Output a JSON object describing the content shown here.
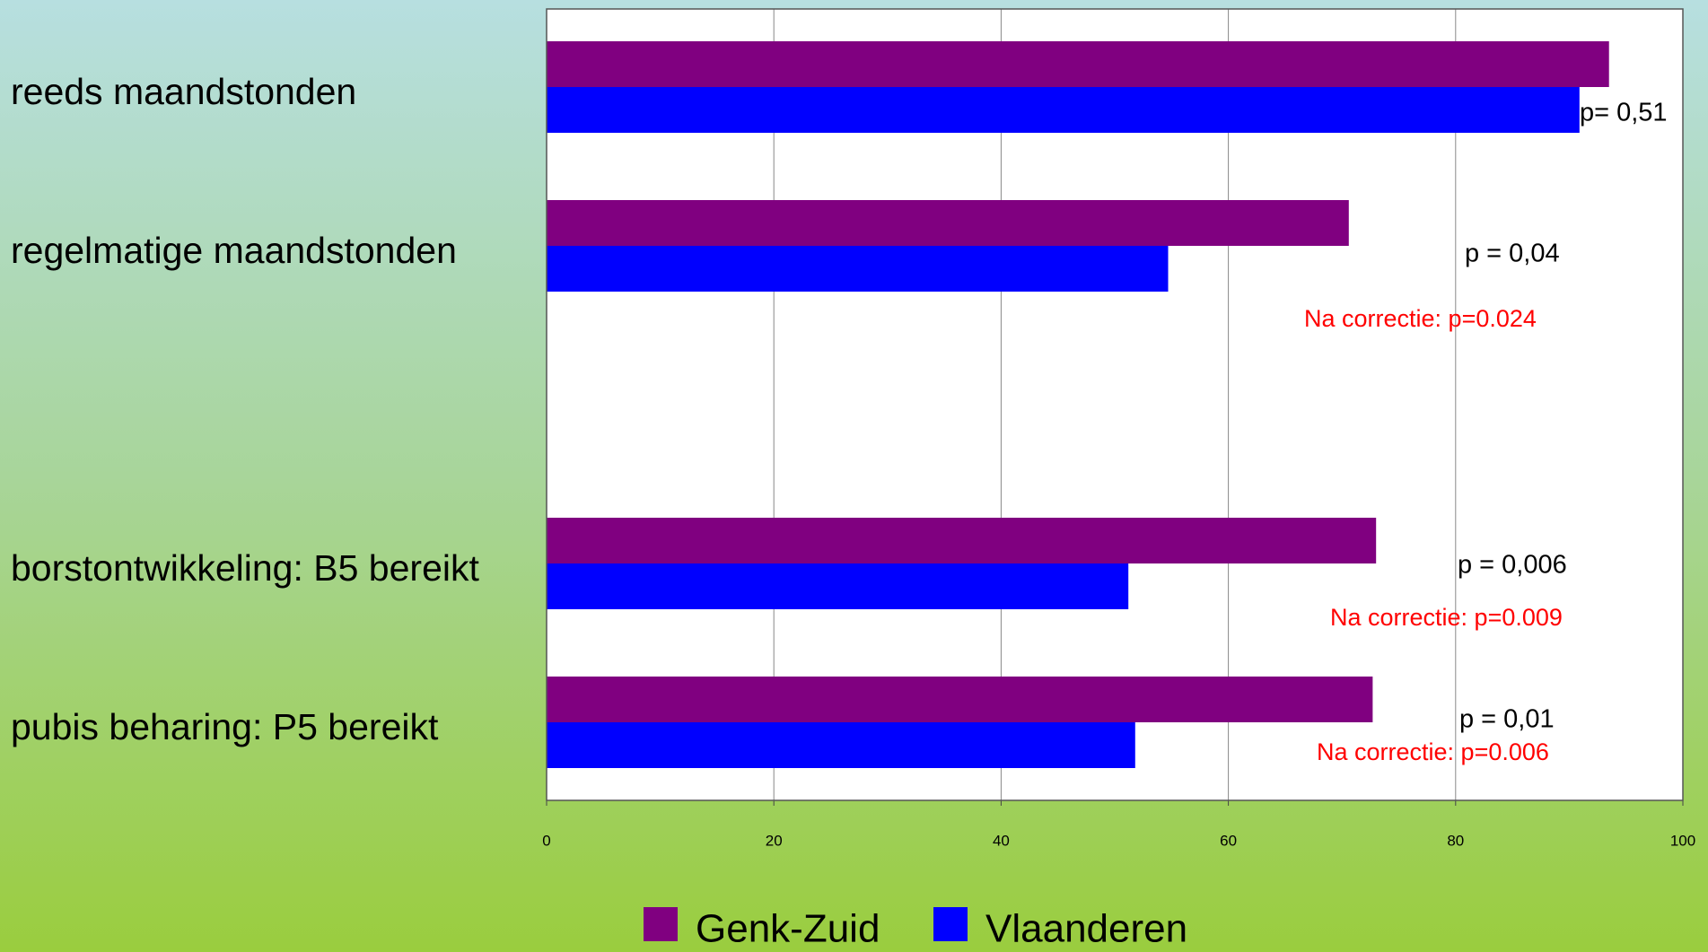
{
  "chart_data": {
    "type": "bar",
    "orientation": "horizontal",
    "categories": [
      "reeds maandstonden",
      "regelmatige maandstonden",
      null,
      "borstontwikkeling: B5 bereikt",
      "pubis beharing: P5 bereikt"
    ],
    "series": [
      {
        "name": "Genk-Zuid",
        "color": "#800080",
        "values": [
          93.5,
          70.6,
          null,
          73.0,
          72.7
        ]
      },
      {
        "name": "Vlaanderen",
        "color": "#0000ff",
        "values": [
          90.9,
          54.7,
          null,
          51.2,
          51.8
        ]
      }
    ],
    "xlim": [
      0,
      100
    ],
    "xticks": [
      0,
      20,
      40,
      60,
      80,
      100
    ],
    "grid": true,
    "legend": "bottom",
    "annotations": [
      {
        "text": "p= 0,51",
        "color": "#000000"
      },
      {
        "text": "p = 0,04",
        "color": "#000000"
      },
      {
        "text": "Na correctie: p=0.024",
        "color": "#ff0000"
      },
      {
        "text": "p = 0,006",
        "color": "#000000"
      },
      {
        "text": "Na correctie: p=0.009",
        "color": "#ff0000"
      },
      {
        "text": "p = 0,01",
        "color": "#000000"
      },
      {
        "text": "Na correctie: p=0.006",
        "color": "#ff0000"
      }
    ]
  }
}
